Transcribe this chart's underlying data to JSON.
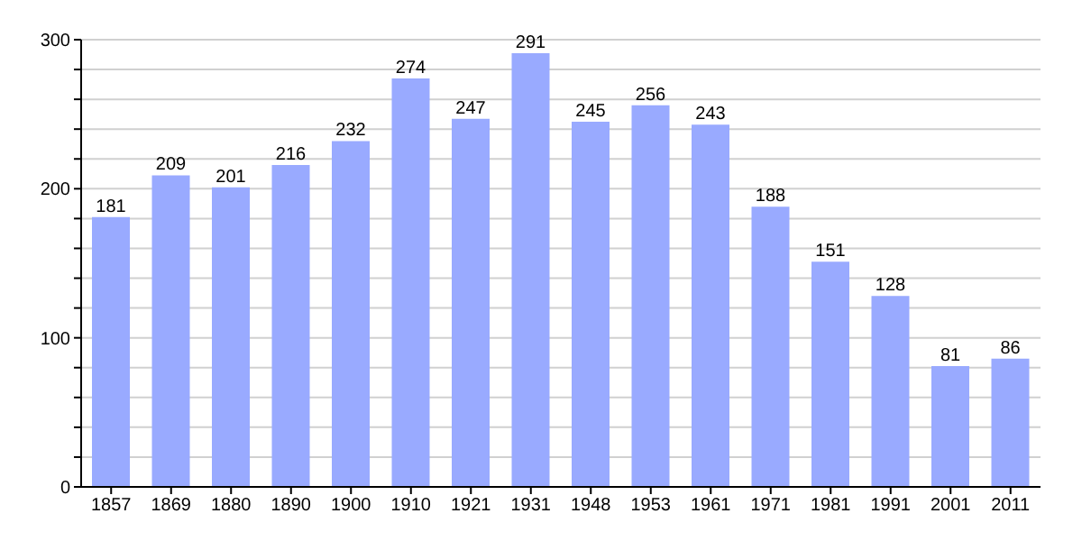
{
  "chart_data": {
    "type": "bar",
    "categories": [
      "1857",
      "1869",
      "1880",
      "1890",
      "1900",
      "1910",
      "1921",
      "1931",
      "1948",
      "1953",
      "1961",
      "1971",
      "1981",
      "1991",
      "2001",
      "2011"
    ],
    "values": [
      181,
      209,
      201,
      216,
      232,
      274,
      247,
      291,
      245,
      256,
      243,
      188,
      151,
      128,
      81,
      86
    ],
    "color": "#99aaff",
    "ylim": [
      0,
      300
    ],
    "yticks": [
      0,
      {
        "value": 20,
        "label": null
      },
      {
        "value": 40,
        "label": null
      },
      {
        "value": 60,
        "label": null
      },
      {
        "value": 80,
        "label": null
      },
      100,
      {
        "value": 120,
        "label": null
      },
      {
        "value": 140,
        "label": null
      },
      {
        "value": 160,
        "label": null
      },
      {
        "value": 180,
        "label": null
      },
      200,
      {
        "value": 220,
        "label": null
      },
      {
        "value": 240,
        "label": null
      },
      {
        "value": 260,
        "label": null
      },
      {
        "value": 280,
        "label": null
      },
      300
    ],
    "grid": "y",
    "data_labels": true
  }
}
